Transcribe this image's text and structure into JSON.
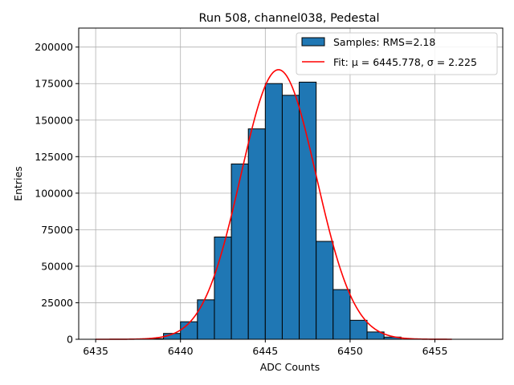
{
  "chart_data": {
    "type": "bar",
    "title": "Run 508, channel038, Pedestal",
    "xlabel": "ADC Counts",
    "ylabel": "Entries",
    "xlim": [
      6434,
      6459
    ],
    "ylim": [
      0,
      213000
    ],
    "xticks": [
      6435,
      6440,
      6445,
      6450,
      6455
    ],
    "yticks": [
      0,
      25000,
      50000,
      75000,
      100000,
      125000,
      150000,
      175000,
      200000
    ],
    "grid": true,
    "legend_position": "top-right",
    "bin_width": 1,
    "histogram": {
      "name": "Samples: RMS=2.18",
      "color": "#1f77b4",
      "bin_starts": [
        6438,
        6439,
        6440,
        6441,
        6442,
        6443,
        6444,
        6445,
        6446,
        6447,
        6448,
        6449,
        6450,
        6451,
        6452
      ],
      "counts": [
        400,
        4000,
        12000,
        27000,
        70000,
        120000,
        144000,
        175000,
        167000,
        176000,
        67000,
        34000,
        13000,
        5000,
        1500
      ]
    },
    "fit": {
      "name": "Fit: μ = 6445.778, σ = 2.225",
      "color": "#ff0000",
      "mu": 6445.778,
      "sigma": 2.225,
      "amplitude": 184500,
      "x_range": [
        6435,
        6456
      ]
    }
  }
}
